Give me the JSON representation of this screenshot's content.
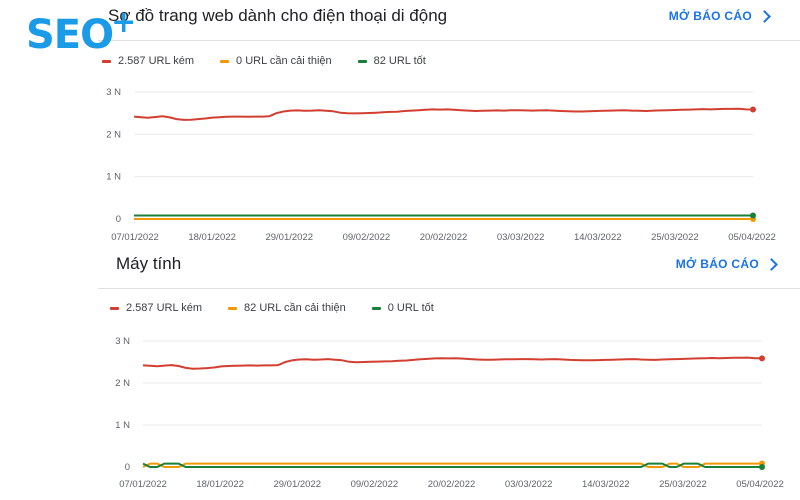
{
  "logo": {
    "text": "SEO",
    "plus": "+"
  },
  "colors": {
    "poor": "#d23f31",
    "needs_improvement": "#f29900",
    "good": "#188038",
    "link": "#1a73e8"
  },
  "cards": [
    {
      "title": "Sơ đồ trang web dành cho điện thoại di động",
      "open_report": "MỞ BÁO CÁO",
      "legend": [
        "2.587 URL kém",
        "0 URL cần cải thiện",
        "82 URL tốt"
      ]
    },
    {
      "title": "Máy tính",
      "open_report": "MỞ BÁO CÁO",
      "legend": [
        "2.587 URL kém",
        "82 URL cần cải thiện",
        "0 URL tốt"
      ]
    }
  ],
  "chart_data": [
    {
      "type": "line",
      "title": "Sơ đồ trang web dành cho điện thoại di động",
      "y_tick_labels": [
        "0",
        "1 N",
        "2 N",
        "3 N"
      ],
      "ylim": [
        0,
        3000
      ],
      "x_tick_labels": [
        "07/01/2022",
        "18/01/2022",
        "29/01/2022",
        "09/02/2022",
        "20/02/2022",
        "03/03/2022",
        "14/03/2022",
        "25/03/2022",
        "05/04/2022"
      ],
      "x_range": [
        "07/01/2022",
        "05/04/2022"
      ],
      "grid": true,
      "legend_position": "top-left",
      "series": [
        {
          "name": "2.587 URL kém",
          "color": "#d23f31",
          "values": [
            2420,
            2405,
            2390,
            2410,
            2425,
            2400,
            2360,
            2340,
            2345,
            2360,
            2375,
            2395,
            2405,
            2415,
            2420,
            2420,
            2415,
            2418,
            2420,
            2425,
            2500,
            2540,
            2560,
            2565,
            2555,
            2560,
            2570,
            2555,
            2545,
            2510,
            2500,
            2495,
            2500,
            2505,
            2510,
            2520,
            2530,
            2535,
            2550,
            2560,
            2570,
            2580,
            2590,
            2585,
            2590,
            2580,
            2570,
            2560,
            2550,
            2555,
            2560,
            2565,
            2560,
            2570,
            2570,
            2565,
            2560,
            2565,
            2570,
            2560,
            2550,
            2545,
            2540,
            2540,
            2545,
            2550,
            2555,
            2560,
            2565,
            2570,
            2560,
            2555,
            2550,
            2560,
            2565,
            2570,
            2575,
            2580,
            2585,
            2590,
            2595,
            2590,
            2595,
            2600,
            2600,
            2605,
            2590,
            2587
          ]
        },
        {
          "name": "0 URL cần cải thiện",
          "color": "#f29900",
          "values": [
            0,
            0,
            0,
            0,
            0,
            0,
            0,
            0,
            0,
            0,
            0,
            0,
            0,
            0,
            0,
            0,
            0,
            0,
            0,
            0,
            0,
            0,
            0,
            0,
            0,
            0,
            0,
            0,
            0,
            0,
            0,
            0,
            0,
            0,
            0,
            0,
            0,
            0,
            0,
            0,
            0,
            0,
            0,
            0,
            0,
            0,
            0,
            0,
            0,
            0,
            0,
            0,
            0,
            0,
            0,
            0,
            0,
            0,
            0,
            0,
            0,
            0,
            0,
            0,
            0,
            0,
            0,
            0,
            0,
            0,
            0,
            0,
            0,
            0,
            0,
            0,
            0,
            0,
            0,
            0,
            0,
            0,
            0,
            0,
            0,
            0,
            0,
            0
          ]
        },
        {
          "name": "82 URL tốt",
          "color": "#188038",
          "values": [
            82,
            82,
            82,
            82,
            82,
            82,
            82,
            82,
            82,
            82,
            82,
            82,
            82,
            82,
            82,
            82,
            82,
            82,
            82,
            82,
            82,
            82,
            82,
            82,
            82,
            82,
            82,
            82,
            82,
            82,
            82,
            82,
            82,
            82,
            82,
            82,
            82,
            82,
            82,
            82,
            82,
            82,
            82,
            82,
            82,
            82,
            82,
            82,
            82,
            82,
            82,
            82,
            82,
            82,
            82,
            82,
            82,
            82,
            82,
            82,
            82,
            82,
            82,
            82,
            82,
            82,
            82,
            82,
            82,
            82,
            82,
            82,
            82,
            82,
            82,
            82,
            82,
            82,
            82,
            82,
            82,
            82,
            82,
            82,
            82,
            82,
            82,
            82
          ]
        }
      ]
    },
    {
      "type": "line",
      "title": "Máy tính",
      "y_tick_labels": [
        "0",
        "1 N",
        "2 N",
        "3 N"
      ],
      "ylim": [
        0,
        3000
      ],
      "x_tick_labels": [
        "07/01/2022",
        "18/01/2022",
        "29/01/2022",
        "09/02/2022",
        "20/02/2022",
        "03/03/2022",
        "14/03/2022",
        "25/03/2022",
        "05/04/2022"
      ],
      "x_range": [
        "07/01/2022",
        "05/04/2022"
      ],
      "grid": true,
      "legend_position": "top-left",
      "series": [
        {
          "name": "2.587 URL kém",
          "color": "#d23f31",
          "values": [
            2420,
            2410,
            2400,
            2415,
            2425,
            2405,
            2360,
            2340,
            2345,
            2355,
            2370,
            2395,
            2405,
            2410,
            2415,
            2420,
            2415,
            2420,
            2420,
            2425,
            2500,
            2540,
            2560,
            2565,
            2555,
            2560,
            2570,
            2555,
            2540,
            2505,
            2495,
            2500,
            2505,
            2510,
            2515,
            2520,
            2530,
            2535,
            2550,
            2565,
            2575,
            2585,
            2590,
            2585,
            2590,
            2580,
            2570,
            2560,
            2555,
            2555,
            2560,
            2565,
            2565,
            2570,
            2570,
            2565,
            2560,
            2565,
            2570,
            2560,
            2550,
            2545,
            2540,
            2540,
            2545,
            2550,
            2555,
            2560,
            2565,
            2570,
            2560,
            2555,
            2550,
            2560,
            2565,
            2570,
            2575,
            2580,
            2585,
            2590,
            2595,
            2590,
            2595,
            2600,
            2600,
            2605,
            2590,
            2587
          ]
        },
        {
          "name": "82 URL cần cải thiện",
          "color": "#f29900",
          "values": [
            0,
            80,
            80,
            0,
            0,
            0,
            80,
            80,
            80,
            80,
            80,
            80,
            80,
            80,
            80,
            80,
            80,
            80,
            80,
            80,
            80,
            80,
            80,
            80,
            80,
            80,
            80,
            80,
            80,
            80,
            80,
            80,
            80,
            80,
            80,
            80,
            80,
            80,
            80,
            80,
            80,
            80,
            80,
            80,
            80,
            80,
            80,
            80,
            80,
            80,
            80,
            80,
            80,
            80,
            80,
            80,
            80,
            80,
            80,
            80,
            80,
            80,
            80,
            80,
            80,
            80,
            80,
            80,
            80,
            80,
            80,
            0,
            0,
            0,
            80,
            80,
            0,
            0,
            0,
            80,
            80,
            80,
            80,
            80,
            80,
            80,
            80,
            82
          ]
        },
        {
          "name": "0 URL tốt",
          "color": "#188038",
          "values": [
            80,
            0,
            0,
            80,
            80,
            80,
            0,
            0,
            0,
            0,
            0,
            0,
            0,
            0,
            0,
            0,
            0,
            0,
            0,
            0,
            0,
            0,
            0,
            0,
            0,
            0,
            0,
            0,
            0,
            0,
            0,
            0,
            0,
            0,
            0,
            0,
            0,
            0,
            0,
            0,
            0,
            0,
            0,
            0,
            0,
            0,
            0,
            0,
            0,
            0,
            0,
            0,
            0,
            0,
            0,
            0,
            0,
            0,
            0,
            0,
            0,
            0,
            0,
            0,
            0,
            0,
            0,
            0,
            0,
            0,
            0,
            80,
            80,
            80,
            0,
            0,
            80,
            80,
            80,
            0,
            0,
            0,
            0,
            0,
            0,
            0,
            0,
            0
          ]
        }
      ]
    }
  ]
}
